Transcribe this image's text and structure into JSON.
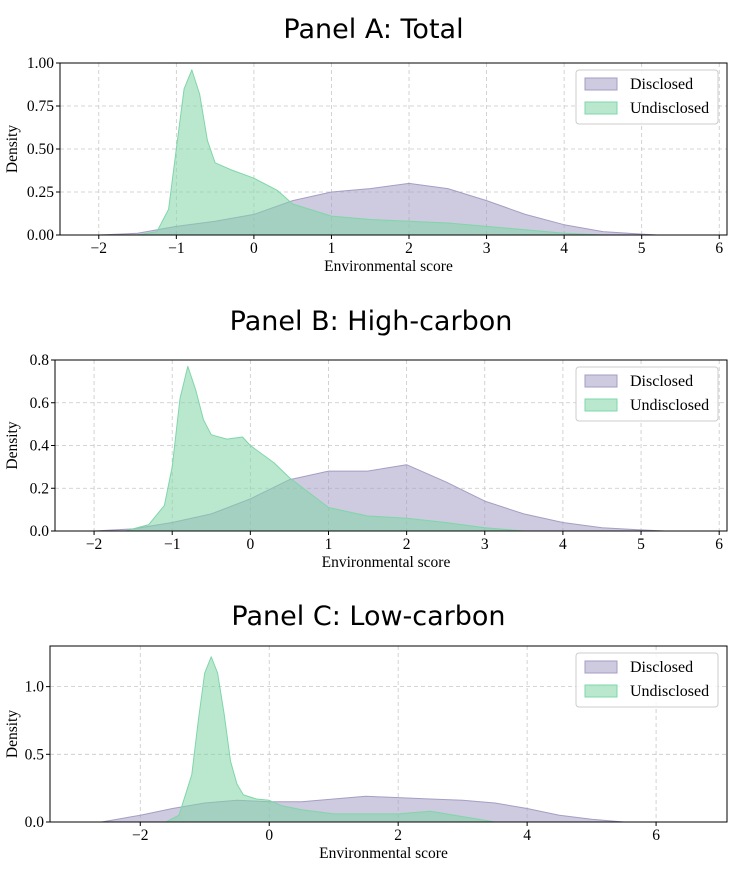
{
  "colors": {
    "disclosed": "#a59ec4",
    "undisclosed": "#7fd6a8"
  },
  "chart_data": [
    {
      "type": "area",
      "title": "Panel A: Total",
      "xlabel": "Environmental score",
      "ylabel": "Density",
      "xlim": [
        -2.5,
        6.1
      ],
      "ylim": [
        0,
        1.0
      ],
      "xticks": [
        "−2",
        "−1",
        "0",
        "1",
        "2",
        "3",
        "4",
        "5",
        "6"
      ],
      "xtick_values": [
        -2,
        -1,
        0,
        1,
        2,
        3,
        4,
        5,
        6
      ],
      "yticks": [
        "0.00",
        "0.25",
        "0.50",
        "0.75",
        "1.00"
      ],
      "ytick_values": [
        0,
        0.25,
        0.5,
        0.75,
        1.0
      ],
      "legend_position": "top-right",
      "grid": true,
      "series": [
        {
          "name": "Disclosed",
          "x": [
            -2.0,
            -1.5,
            -1.0,
            -0.5,
            0.0,
            0.5,
            1.0,
            1.5,
            2.0,
            2.5,
            3.0,
            3.5,
            4.0,
            4.5,
            5.0,
            5.2
          ],
          "y": [
            0.0,
            0.01,
            0.05,
            0.08,
            0.12,
            0.2,
            0.25,
            0.27,
            0.3,
            0.27,
            0.2,
            0.12,
            0.06,
            0.02,
            0.005,
            0.0
          ]
        },
        {
          "name": "Undisclosed",
          "x": [
            -1.5,
            -1.25,
            -1.1,
            -1.0,
            -0.9,
            -0.8,
            -0.7,
            -0.6,
            -0.5,
            -0.3,
            0.0,
            0.3,
            0.5,
            1.0,
            1.5,
            2.0,
            2.5,
            3.0,
            3.5,
            4.0,
            4.5
          ],
          "y": [
            0.0,
            0.02,
            0.15,
            0.5,
            0.85,
            0.96,
            0.82,
            0.55,
            0.42,
            0.38,
            0.33,
            0.26,
            0.18,
            0.11,
            0.09,
            0.08,
            0.07,
            0.05,
            0.03,
            0.01,
            0.0
          ]
        }
      ]
    },
    {
      "type": "area",
      "title": "Panel B: High-carbon",
      "xlabel": "Environmental score",
      "ylabel": "Density",
      "xlim": [
        -2.5,
        6.1
      ],
      "ylim": [
        0,
        0.8
      ],
      "xticks": [
        "−2",
        "−1",
        "0",
        "1",
        "2",
        "3",
        "4",
        "5",
        "6"
      ],
      "xtick_values": [
        -2,
        -1,
        0,
        1,
        2,
        3,
        4,
        5,
        6
      ],
      "yticks": [
        "0.0",
        "0.2",
        "0.4",
        "0.6",
        "0.8"
      ],
      "ytick_values": [
        0,
        0.2,
        0.4,
        0.6,
        0.8
      ],
      "legend_position": "top-right",
      "grid": true,
      "series": [
        {
          "name": "Disclosed",
          "x": [
            -2.0,
            -1.5,
            -1.0,
            -0.5,
            0.0,
            0.5,
            1.0,
            1.5,
            2.0,
            2.5,
            3.0,
            3.5,
            4.0,
            4.5,
            5.0,
            5.3
          ],
          "y": [
            0.0,
            0.01,
            0.04,
            0.08,
            0.15,
            0.24,
            0.28,
            0.28,
            0.31,
            0.23,
            0.14,
            0.08,
            0.04,
            0.015,
            0.005,
            0.0
          ]
        },
        {
          "name": "Undisclosed",
          "x": [
            -1.6,
            -1.3,
            -1.1,
            -1.0,
            -0.9,
            -0.8,
            -0.7,
            -0.6,
            -0.5,
            -0.3,
            -0.1,
            0.0,
            0.3,
            0.5,
            1.0,
            1.5,
            2.0,
            2.5,
            3.0,
            3.5
          ],
          "y": [
            0.0,
            0.03,
            0.12,
            0.3,
            0.62,
            0.77,
            0.66,
            0.52,
            0.45,
            0.43,
            0.44,
            0.4,
            0.32,
            0.25,
            0.11,
            0.07,
            0.06,
            0.04,
            0.015,
            0.0
          ]
        }
      ]
    },
    {
      "type": "area",
      "title": "Panel C: Low-carbon",
      "xlabel": "Environmental score",
      "ylabel": "Density",
      "xlim": [
        -3.4,
        7.1
      ],
      "ylim": [
        0,
        1.3
      ],
      "xticks": [
        "−2",
        "0",
        "2",
        "4",
        "6"
      ],
      "xtick_values": [
        -2,
        0,
        2,
        4,
        6
      ],
      "yticks": [
        "0.0",
        "0.5",
        "1.0"
      ],
      "ytick_values": [
        0,
        0.5,
        1.0
      ],
      "legend_position": "top-right",
      "grid": true,
      "series": [
        {
          "name": "Disclosed",
          "x": [
            -2.6,
            -2.0,
            -1.5,
            -1.0,
            -0.5,
            0.0,
            0.5,
            1.0,
            1.5,
            2.0,
            2.5,
            3.0,
            3.5,
            4.0,
            4.5,
            5.0,
            5.5
          ],
          "y": [
            0.0,
            0.05,
            0.1,
            0.14,
            0.16,
            0.15,
            0.15,
            0.17,
            0.19,
            0.18,
            0.17,
            0.16,
            0.14,
            0.1,
            0.05,
            0.02,
            0.0
          ]
        },
        {
          "name": "Undisclosed",
          "x": [
            -1.6,
            -1.4,
            -1.2,
            -1.1,
            -1.0,
            -0.9,
            -0.8,
            -0.7,
            -0.6,
            -0.5,
            -0.4,
            -0.2,
            0.0,
            0.2,
            0.5,
            1.0,
            2.0,
            2.5,
            3.0,
            3.5
          ],
          "y": [
            0.0,
            0.05,
            0.35,
            0.75,
            1.1,
            1.22,
            1.1,
            0.8,
            0.45,
            0.28,
            0.2,
            0.17,
            0.16,
            0.12,
            0.09,
            0.06,
            0.06,
            0.08,
            0.04,
            0.0
          ]
        }
      ]
    }
  ]
}
